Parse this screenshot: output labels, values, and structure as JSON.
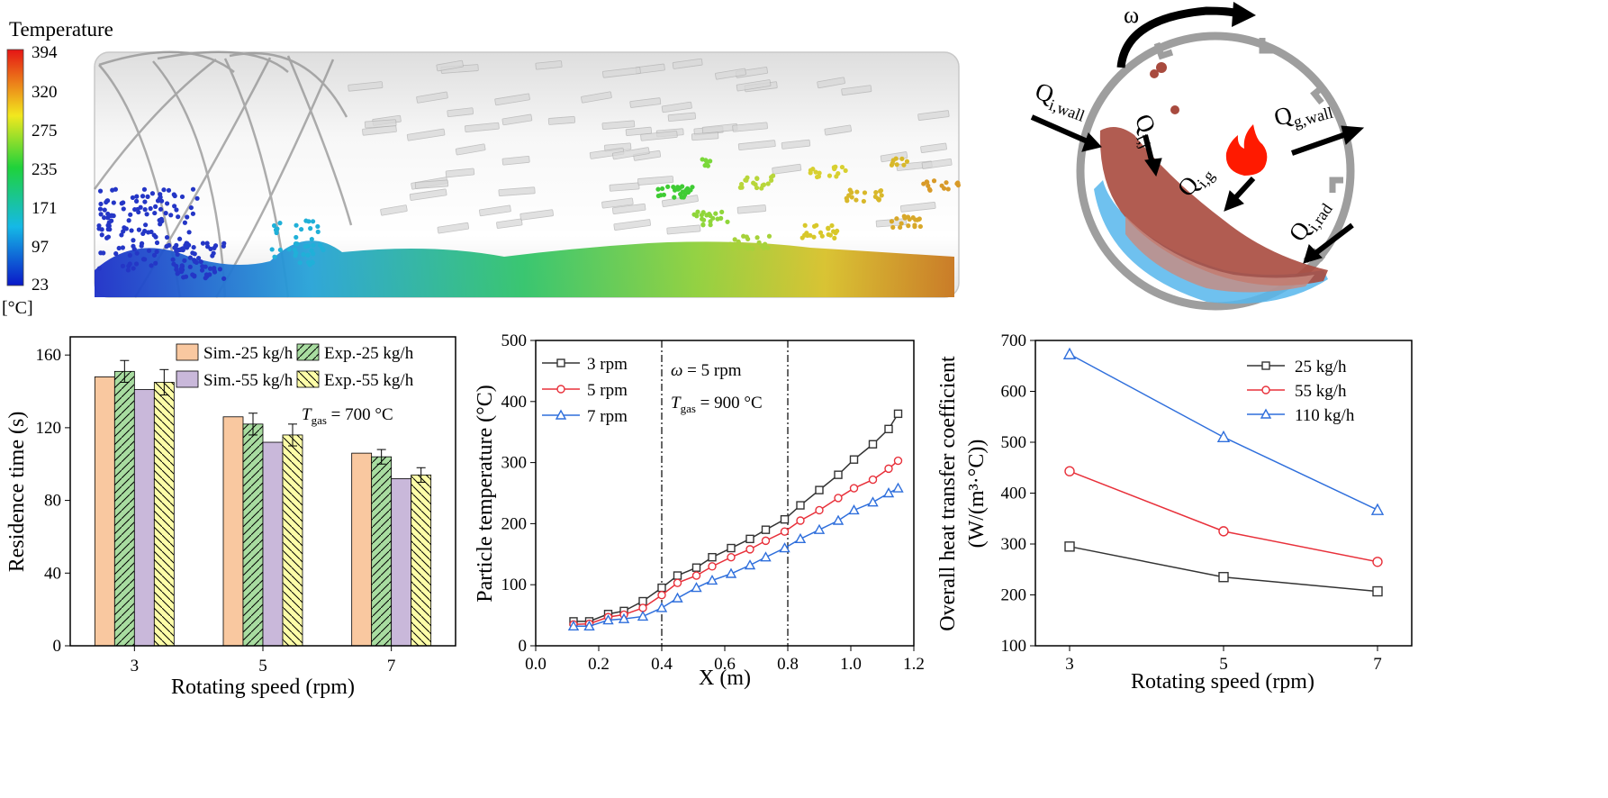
{
  "colorbar": {
    "title": "Temperature",
    "unit": "[°C]",
    "ticks": [
      "394",
      "320",
      "275",
      "235",
      "171",
      "97",
      "23"
    ]
  },
  "schematic": {
    "omega": "ω",
    "labels": [
      {
        "main": "Q",
        "sub": "i,wall"
      },
      {
        "main": "Q",
        "sub": "i,j"
      },
      {
        "main": "Q",
        "sub": "g,wall"
      },
      {
        "main": "Q",
        "sub": "i,g"
      },
      {
        "main": "Q",
        "sub": "i,rad"
      }
    ]
  },
  "chart_data": [
    {
      "type": "bar",
      "categories": [
        "3",
        "5",
        "7"
      ],
      "series": [
        {
          "name": "Sim.-25 kg/h",
          "values": [
            148,
            126,
            106
          ],
          "color": "#f9c8a0",
          "hatch": "none"
        },
        {
          "name": "Exp.-25 kg/h",
          "values": [
            151,
            122,
            104
          ],
          "error": [
            6,
            6,
            4
          ],
          "color": "#a8dca0",
          "hatch": "forward"
        },
        {
          "name": "Sim.-55 kg/h",
          "values": [
            141,
            112,
            92
          ],
          "color": "#c9b8da",
          "hatch": "none"
        },
        {
          "name": "Exp.-55 kg/h",
          "values": [
            145,
            116,
            94
          ],
          "error": [
            7,
            6,
            4
          ],
          "color": "#fdfda8",
          "hatch": "back"
        }
      ],
      "annotation": {
        "symbol": "T",
        "sub": "gas",
        "text": " = 700 °C"
      },
      "xlabel": "Rotating speed (rpm)",
      "ylabel": "Residence time (s)",
      "ylim": [
        0,
        170
      ],
      "yticks": [
        "0",
        "40",
        "80",
        "120",
        "160"
      ],
      "legend": "top-right"
    },
    {
      "type": "line",
      "x": [
        0.12,
        0.17,
        0.23,
        0.28,
        0.34,
        0.4,
        0.45,
        0.51,
        0.56,
        0.62,
        0.68,
        0.73,
        0.79,
        0.84,
        0.9,
        0.96,
        1.01,
        1.07,
        1.12,
        1.15
      ],
      "series": [
        {
          "name": "3 rpm",
          "color": "#333333",
          "marker": "square",
          "values": [
            40,
            40,
            52,
            57,
            73,
            95,
            115,
            128,
            145,
            160,
            175,
            190,
            207,
            230,
            255,
            280,
            305,
            330,
            355,
            380
          ]
        },
        {
          "name": "5 rpm",
          "color": "#e8303a",
          "marker": "circle",
          "values": [
            35,
            36,
            47,
            51,
            62,
            83,
            103,
            115,
            130,
            145,
            158,
            172,
            187,
            205,
            222,
            242,
            258,
            272,
            290,
            303
          ]
        },
        {
          "name": "7 rpm",
          "color": "#2f6fdc",
          "marker": "triangle",
          "values": [
            32,
            32,
            42,
            44,
            48,
            62,
            78,
            95,
            107,
            118,
            132,
            145,
            160,
            175,
            190,
            205,
            222,
            235,
            250,
            258
          ]
        }
      ],
      "vlines": [
        0.4,
        0.8
      ],
      "annotations": [
        {
          "symbol": "ω",
          "sub": "",
          "text": " = 5 rpm"
        },
        {
          "symbol": "T",
          "sub": "gas",
          "text": " = 900 °C"
        }
      ],
      "xlabel": "X (m)",
      "ylabel": "Particle temperature (°C)",
      "xlim": [
        0.0,
        1.2
      ],
      "ylim": [
        0,
        500
      ],
      "xticks": [
        "0.0",
        "0.2",
        "0.4",
        "0.6",
        "0.8",
        "1.0",
        "1.2"
      ],
      "yticks": [
        "0",
        "100",
        "200",
        "300",
        "400",
        "500"
      ],
      "legend": "top-left"
    },
    {
      "type": "line",
      "categories": [
        "3",
        "5",
        "7"
      ],
      "series": [
        {
          "name": "25 kg/h",
          "color": "#333333",
          "marker": "square",
          "values": [
            295,
            235,
            207
          ]
        },
        {
          "name": "55 kg/h",
          "color": "#e8303a",
          "marker": "circle",
          "values": [
            443,
            325,
            265
          ]
        },
        {
          "name": "110 kg/h",
          "color": "#2f6fdc",
          "marker": "triangle",
          "values": [
            673,
            510,
            367
          ]
        }
      ],
      "xlabel": "Rotating speed (rpm)",
      "ylabel_line1": "Overall heat transfer coefficient",
      "ylabel_line2": "(W/(m³·°C))",
      "ylim": [
        100,
        700
      ],
      "yticks": [
        "100",
        "200",
        "300",
        "400",
        "500",
        "600",
        "700"
      ],
      "legend": "top-right"
    }
  ]
}
